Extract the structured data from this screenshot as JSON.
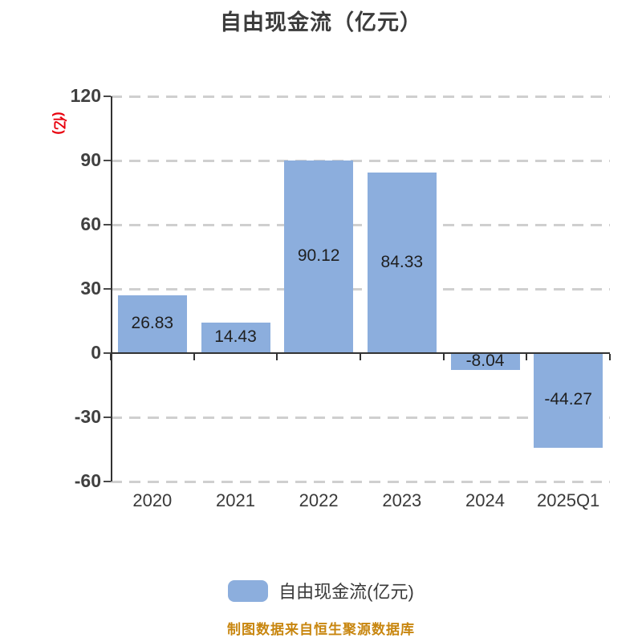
{
  "page": {
    "background": "#FFFFFF"
  },
  "chart_data": {
    "type": "bar",
    "title": "自由现金流（亿元）",
    "y_unit_label": "(亿)",
    "categories": [
      "2020",
      "2021",
      "2022",
      "2023",
      "2024",
      "2025Q1"
    ],
    "series": [
      {
        "name": "自由现金流(亿元)",
        "values": [
          26.83,
          14.43,
          90.12,
          84.33,
          -8.04,
          -44.27
        ]
      }
    ],
    "value_labels": [
      "26.83",
      "14.43",
      "90.12",
      "84.33",
      "-8.04",
      "-44.27"
    ],
    "ylim": [
      -60,
      120
    ],
    "yticks": [
      120,
      90,
      60,
      30,
      0,
      -30,
      -60
    ],
    "grid": "horizontal-dashed",
    "legend_position": "bottom",
    "bar_color": "#8CAEDD"
  },
  "legend": {
    "label": "自由现金流(亿元)",
    "swatch_color": "#8CAEDD"
  },
  "footer": {
    "caption": "制图数据来自恒生聚源数据库",
    "caption_color": "#C8860F"
  },
  "colors": {
    "title": "#3C3C3C",
    "axis_line": "#333333",
    "tick_label": "#404040",
    "gridline": "#CFCFCF",
    "value_label": "#1F1F1F",
    "unit_label_red": "#E8000D",
    "bar": "#8CAEDD"
  }
}
